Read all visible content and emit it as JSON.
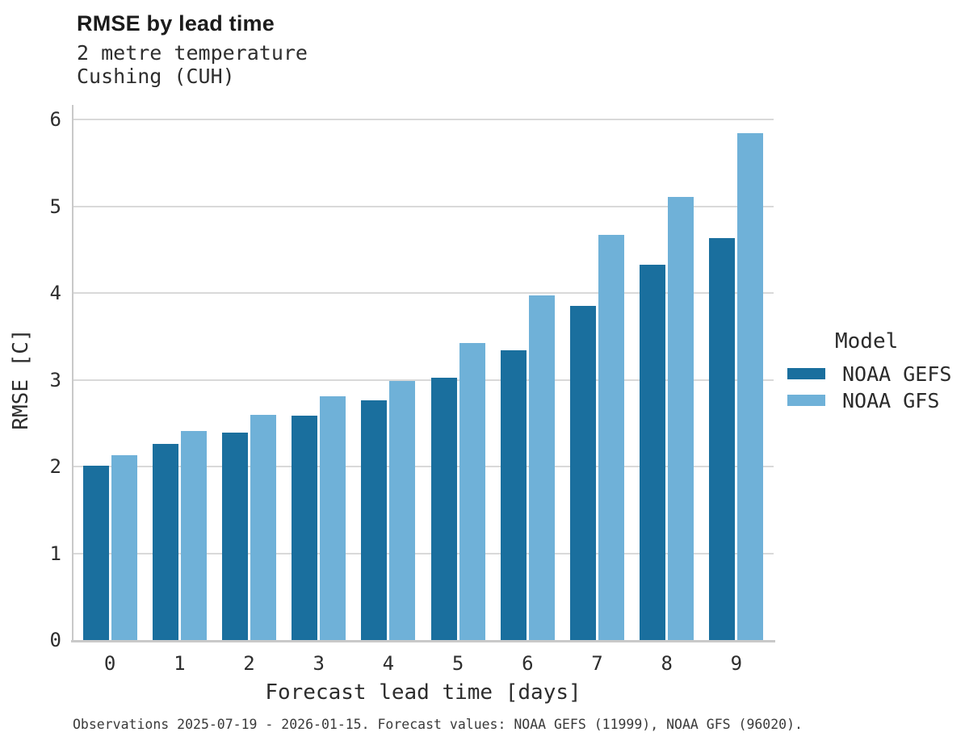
{
  "header": {
    "title": "RMSE by lead time",
    "subtitle_line1": "2 metre temperature",
    "subtitle_line2": "Cushing (CUH)"
  },
  "legend": {
    "title": "Model"
  },
  "footer": {
    "note": "Observations 2025-07-19 - 2026-01-15. Forecast values: NOAA GEFS (11999), NOAA GFS (96020)."
  },
  "colors": {
    "gefs_bar": "#1a6f9e",
    "gfs_bar": "#6fb1d8",
    "gridline": "#d9d9d9",
    "axis_line": "#c9c9c9"
  },
  "chart_data": {
    "type": "bar",
    "title": "RMSE by lead time",
    "subtitle": [
      "2 metre temperature",
      "Cushing (CUH)"
    ],
    "xlabel": "Forecast lead time [days]",
    "ylabel": "RMSE [C]",
    "categories": [
      "0",
      "1",
      "2",
      "3",
      "4",
      "5",
      "6",
      "7",
      "8",
      "9"
    ],
    "series": [
      {
        "name": "NOAA GEFS",
        "color": "#1a6f9e",
        "values": [
          2.01,
          2.26,
          2.39,
          2.59,
          2.76,
          3.02,
          3.34,
          3.85,
          4.33,
          4.63
        ]
      },
      {
        "name": "NOAA GFS",
        "color": "#6fb1d8",
        "values": [
          2.13,
          2.41,
          2.6,
          2.81,
          2.99,
          3.42,
          3.97,
          4.67,
          5.11,
          5.84
        ]
      }
    ],
    "ylim": [
      0,
      6
    ],
    "yticks": [
      0,
      1,
      2,
      3,
      4,
      5,
      6
    ],
    "grid": "horizontal",
    "legend_title": "Model",
    "legend_position": "right",
    "caption": "Observations 2025-07-19 - 2026-01-15. Forecast values: NOAA GEFS (11999), NOAA GFS (96020)."
  }
}
